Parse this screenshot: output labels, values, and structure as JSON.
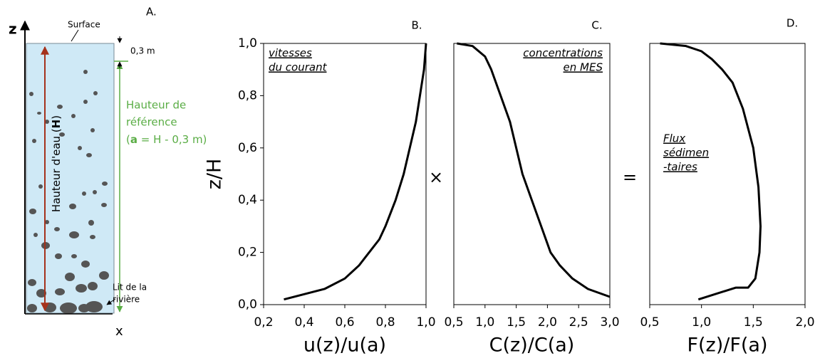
{
  "diagram": {
    "panel_label": "A.",
    "z_axis": "z",
    "x_axis": "x",
    "surface": "Surface",
    "offset": "0,3 m",
    "ref_lines": [
      "Hauteur de",
      "référence"
    ],
    "ref_formula": [
      "(",
      "a",
      " = H - 0,3 m)"
    ],
    "depth": [
      "Hauteur d'eau ",
      "(",
      "H",
      ")"
    ],
    "bed": [
      "Lit de la",
      "rivière"
    ]
  },
  "operators": [
    "×",
    "="
  ],
  "chart_data": [
    {
      "type": "line",
      "panel_label": "B.",
      "annotation": [
        "vitesses",
        "du courant"
      ],
      "xlabel": "u(z)/u(a)",
      "ylabel": "z/H",
      "color": "#000000",
      "x": [
        0.3,
        0.5,
        0.6,
        0.67,
        0.72,
        0.77,
        0.8,
        0.85,
        0.89,
        0.92,
        0.95,
        0.97,
        0.99,
        1.0
      ],
      "values": [
        0.02,
        0.06,
        0.1,
        0.15,
        0.2,
        0.25,
        0.3,
        0.4,
        0.5,
        0.6,
        0.7,
        0.8,
        0.9,
        1.0
      ],
      "xlim": [
        0.2,
        1.0
      ],
      "ylim": [
        0,
        1.0
      ],
      "xticks": [
        {
          "value": 0.2,
          "label": "0,2"
        },
        {
          "value": 0.4,
          "label": "0,4"
        },
        {
          "value": 0.6,
          "label": "0,6"
        },
        {
          "value": 0.8,
          "label": "0,8"
        },
        {
          "value": 1.0,
          "label": "1,0"
        }
      ],
      "yticks": [
        {
          "value": 0,
          "label": "0,0"
        },
        {
          "value": 0.2,
          "label": "0,2"
        },
        {
          "value": 0.4,
          "label": "0,4"
        },
        {
          "value": 0.6,
          "label": "0,6"
        },
        {
          "value": 0.8,
          "label": "0,8"
        },
        {
          "value": 1.0,
          "label": "1,0"
        }
      ]
    },
    {
      "type": "line",
      "panel_label": "C.",
      "annotation": [
        "concentrations",
        "en MES"
      ],
      "xlabel": "C(z)/C(a)",
      "color": "#000000",
      "x": [
        0.55,
        0.8,
        1.0,
        1.1,
        1.25,
        1.4,
        1.5,
        1.6,
        1.75,
        1.9,
        2.05,
        2.2,
        2.4,
        2.65,
        3.0
      ],
      "values": [
        1.0,
        0.99,
        0.95,
        0.9,
        0.8,
        0.7,
        0.6,
        0.5,
        0.4,
        0.3,
        0.2,
        0.15,
        0.1,
        0.06,
        0.03
      ],
      "xlim": [
        0.5,
        3.0
      ],
      "ylim": [
        0,
        1.0
      ],
      "xticks": [
        {
          "value": 0.5,
          "label": "0,5"
        },
        {
          "value": 1.0,
          "label": "1,0"
        },
        {
          "value": 1.5,
          "label": "1,5"
        },
        {
          "value": 2.0,
          "label": "2,0"
        },
        {
          "value": 2.5,
          "label": "2,5"
        },
        {
          "value": 3.0,
          "label": "3,0"
        }
      ]
    },
    {
      "type": "line",
      "panel_label": "D.",
      "annotation": [
        "Flux",
        "sédimen",
        "-taires"
      ],
      "xlabel": "F(z)/F(a)",
      "color": "#000000",
      "x": [
        0.6,
        0.85,
        1.0,
        1.1,
        1.2,
        1.3,
        1.4,
        1.5,
        1.55,
        1.57,
        1.56,
        1.52,
        1.45,
        1.33,
        0.97
      ],
      "values": [
        1.0,
        0.99,
        0.97,
        0.94,
        0.9,
        0.85,
        0.75,
        0.6,
        0.45,
        0.3,
        0.2,
        0.1,
        0.065,
        0.065,
        0.02
      ],
      "xlim": [
        0.5,
        2.0
      ],
      "ylim": [
        0,
        1.0
      ],
      "xticks": [
        {
          "value": 0.5,
          "label": "0,5"
        },
        {
          "value": 1.0,
          "label": "1,0"
        },
        {
          "value": 1.5,
          "label": "1,5"
        },
        {
          "value": 2.0,
          "label": "2,0"
        }
      ]
    }
  ]
}
